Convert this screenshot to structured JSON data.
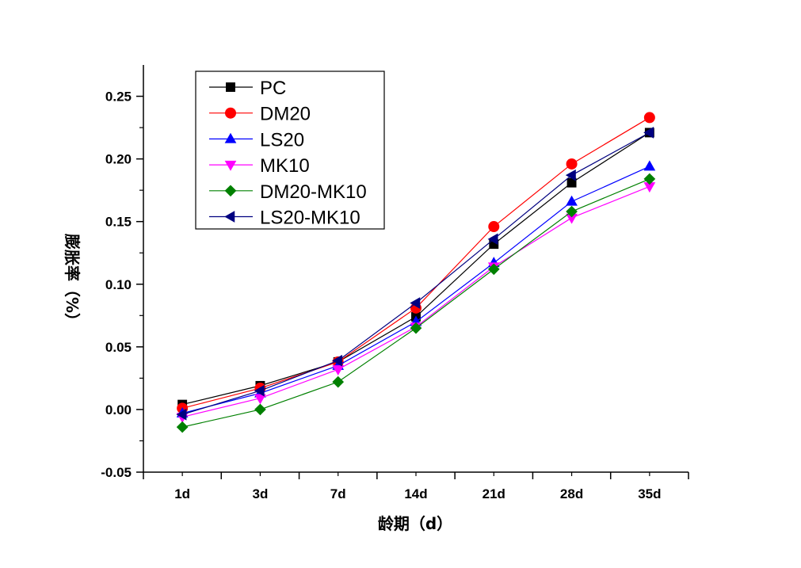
{
  "chart_data": {
    "type": "line",
    "title": "",
    "xlabel": "龄期（d）",
    "ylabel": "膨胀率（%）",
    "categories": [
      "1d",
      "3d",
      "7d",
      "14d",
      "21d",
      "28d",
      "35d"
    ],
    "ylim": [
      -0.05,
      0.275
    ],
    "yticks": [
      "-0.05",
      "0.00",
      "0.05",
      "0.10",
      "0.15",
      "0.20",
      "0.25"
    ],
    "ytick_values": [
      -0.05,
      0.0,
      0.05,
      0.1,
      0.15,
      0.2,
      0.25
    ],
    "grid": false,
    "legend_position": "top-left",
    "series": [
      {
        "name": "PC",
        "color": "#000000",
        "marker": "square",
        "values": [
          0.004,
          0.019,
          0.038,
          0.074,
          0.132,
          0.181,
          0.221
        ]
      },
      {
        "name": "DM20",
        "color": "#ff0000",
        "marker": "circle",
        "values": [
          0.001,
          0.017,
          0.038,
          0.081,
          0.146,
          0.196,
          0.233
        ]
      },
      {
        "name": "LS20",
        "color": "#0000ff",
        "marker": "triangle-up",
        "values": [
          -0.003,
          0.013,
          0.035,
          0.07,
          0.117,
          0.166,
          0.194
        ]
      },
      {
        "name": "MK10",
        "color": "#ff00ff",
        "marker": "triangle-down",
        "values": [
          -0.006,
          0.009,
          0.032,
          0.066,
          0.114,
          0.153,
          0.178
        ]
      },
      {
        "name": "DM20-MK10",
        "color": "#008000",
        "marker": "diamond",
        "values": [
          -0.014,
          0.0,
          0.022,
          0.065,
          0.112,
          0.158,
          0.184
        ]
      },
      {
        "name": "LS20-MK10",
        "color": "#000080",
        "marker": "triangle-left",
        "values": [
          -0.004,
          0.015,
          0.039,
          0.085,
          0.136,
          0.187,
          0.221
        ]
      }
    ]
  }
}
